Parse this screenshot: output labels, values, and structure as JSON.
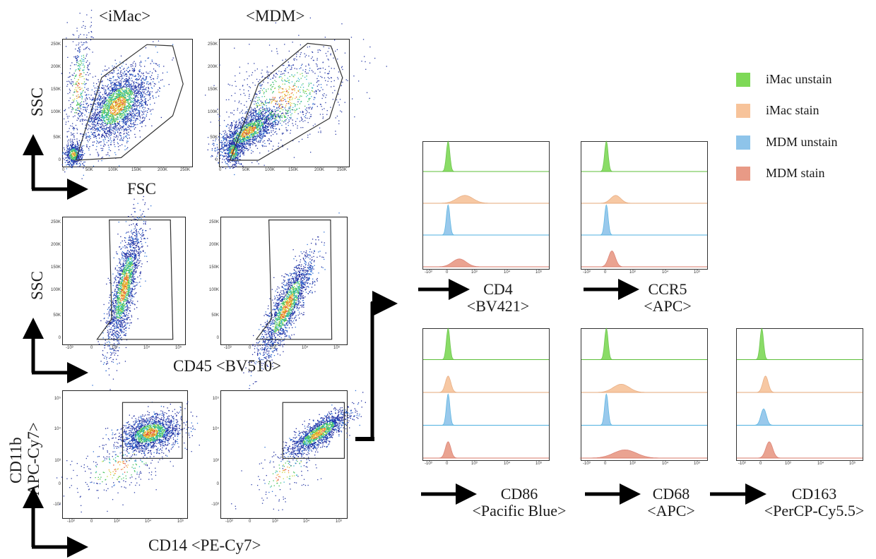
{
  "columns": {
    "left": "<iMac>",
    "right": "<MDM>"
  },
  "scatter_axes": {
    "row1_y": "SSC",
    "row1_x": "FSC",
    "row2_y": "SSC",
    "row2_x": "CD45 <BV510>",
    "row3_y_line1": "CD11b",
    "row3_y_line2": "<APC-Cy7>",
    "row3_x": "CD14  <PE-Cy7>"
  },
  "ticks": {
    "fsc_y": [
      "250K",
      "200K",
      "150K",
      "100K",
      "50K",
      "0"
    ],
    "fsc_x": [
      "0",
      "50K",
      "100K",
      "150K",
      "200K",
      "250K"
    ],
    "log_x": [
      "-10³",
      "0",
      "10³",
      "10⁴",
      "10⁵"
    ],
    "log_y": [
      "10⁵",
      "10⁴",
      "10³",
      "0",
      "-10³"
    ]
  },
  "legend": [
    {
      "label": "iMac unstain",
      "color": "#7ed957"
    },
    {
      "label": "iMac stain",
      "color": "#f7c39a"
    },
    {
      "label": "MDM unstain",
      "color": "#8ec4ea"
    },
    {
      "label": "MDM stain",
      "color": "#e89a86"
    }
  ],
  "histogram_labels": {
    "cd4": {
      "name": "CD4",
      "dye": "<BV421>"
    },
    "ccr5": {
      "name": "CCR5",
      "dye": "<APC>"
    },
    "cd86": {
      "name": "CD86",
      "dye": "<Pacific Blue>"
    },
    "cd68": {
      "name": "CD68",
      "dye": "<APC>"
    },
    "cd163": {
      "name": "CD163",
      "dye": "<PerCP-Cy5.5>"
    }
  },
  "chart_data": [
    {
      "type": "scatter",
      "title": "<iMac>",
      "xlabel": "FSC",
      "ylabel": "SSC",
      "xlim": [
        0,
        262144
      ],
      "ylim": [
        0,
        262144
      ],
      "gated": true
    },
    {
      "type": "scatter",
      "title": "<MDM>",
      "xlabel": "FSC",
      "ylabel": "SSC",
      "xlim": [
        0,
        262144
      ],
      "ylim": [
        0,
        262144
      ],
      "gated": true
    },
    {
      "type": "scatter",
      "xlabel": "CD45 <BV510>",
      "ylabel": "SSC",
      "gated": true
    },
    {
      "type": "scatter",
      "xlabel": "CD45 <BV510>",
      "ylabel": "SSC",
      "gated": true
    },
    {
      "type": "scatter",
      "xlabel": "CD14  <PE-Cy7>",
      "ylabel": "CD11b <APC-Cy7>",
      "gated": true
    },
    {
      "type": "scatter",
      "xlabel": "CD14  <PE-Cy7>",
      "ylabel": "CD11b <APC-Cy7>",
      "gated": true
    },
    {
      "type": "area",
      "marker": "CD4 <BV421>",
      "series": [
        {
          "name": "iMac unstain",
          "peak_log": 0.0,
          "spread": 0.05
        },
        {
          "name": "iMac stain",
          "peak_log": 2.9,
          "spread": 0.35
        },
        {
          "name": "MDM unstain",
          "peak_log": 0.0,
          "spread": 0.07
        },
        {
          "name": "MDM stain",
          "peak_log": 2.6,
          "spread": 0.3
        }
      ]
    },
    {
      "type": "area",
      "marker": "CCR5 <APC>",
      "series": [
        {
          "name": "iMac unstain",
          "peak_log": 0.0,
          "spread": 0.05
        },
        {
          "name": "iMac stain",
          "peak_log": 2.5,
          "spread": 0.22
        },
        {
          "name": "MDM unstain",
          "peak_log": 0.0,
          "spread": 0.05
        },
        {
          "name": "MDM stain",
          "peak_log": 2.3,
          "spread": 0.15
        }
      ]
    },
    {
      "type": "area",
      "marker": "CD86 <Pacific Blue>",
      "series": [
        {
          "name": "iMac unstain",
          "peak_log": 0.0,
          "spread": 0.05
        },
        {
          "name": "iMac stain",
          "peak_log": 2.0,
          "spread": 0.12
        },
        {
          "name": "MDM unstain",
          "peak_log": 0.0,
          "spread": 0.07
        },
        {
          "name": "MDM stain",
          "peak_log": 2.0,
          "spread": 0.12
        }
      ]
    },
    {
      "type": "area",
      "marker": "CD68 <APC>",
      "series": [
        {
          "name": "iMac unstain",
          "peak_log": 0.0,
          "spread": 0.05
        },
        {
          "name": "iMac stain",
          "peak_log": 2.8,
          "spread": 0.35
        },
        {
          "name": "MDM unstain",
          "peak_log": 0.0,
          "spread": 0.05
        },
        {
          "name": "MDM stain",
          "peak_log": 3.0,
          "spread": 0.5
        }
      ]
    },
    {
      "type": "area",
      "marker": "CD163 <PerCP-Cy5.5>",
      "series": [
        {
          "name": "iMac unstain",
          "peak_log": 0.0,
          "spread": 0.06
        },
        {
          "name": "iMac stain",
          "peak_log": 2.2,
          "spread": 0.12
        },
        {
          "name": "MDM unstain",
          "peak_log": 2.1,
          "spread": 0.12
        },
        {
          "name": "MDM stain",
          "peak_log": 2.4,
          "spread": 0.15
        }
      ]
    }
  ]
}
